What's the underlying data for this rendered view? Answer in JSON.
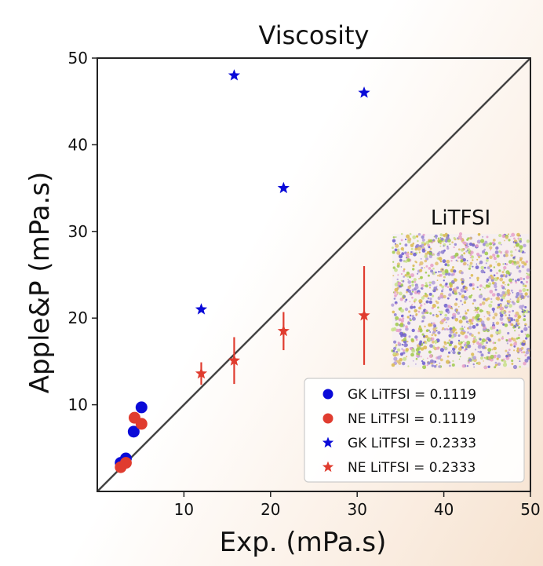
{
  "chart_data": {
    "type": "scatter",
    "title": "Viscosity",
    "xlabel": "Exp. (mPa.s)",
    "ylabel": "Apple&P (mPa.s)",
    "xlim": [
      0,
      50
    ],
    "ylim": [
      0,
      50
    ],
    "xticks": [
      10,
      20,
      30,
      40,
      50
    ],
    "yticks": [
      10,
      20,
      30,
      40,
      50
    ],
    "grid": false,
    "legend_position": "bottom-right",
    "diagonal_line": true,
    "inset_label": "LiTFSI",
    "series": [
      {
        "name": "GK LiTFSI = 0.1119",
        "marker": "circle",
        "color": "#0a0ad8",
        "points": [
          {
            "x": 2.7,
            "y": 3.3
          },
          {
            "x": 3.3,
            "y": 3.8
          },
          {
            "x": 4.2,
            "y": 6.9
          },
          {
            "x": 5.1,
            "y": 9.7
          }
        ]
      },
      {
        "name": "NE LiTFSI = 0.1119",
        "marker": "circle",
        "color": "#e03c2f",
        "points": [
          {
            "x": 2.7,
            "y": 2.8
          },
          {
            "x": 3.3,
            "y": 3.3
          },
          {
            "x": 4.3,
            "y": 8.5
          },
          {
            "x": 5.1,
            "y": 7.8
          }
        ]
      },
      {
        "name": "GK LiTFSI = 0.2333",
        "marker": "star",
        "color": "#0a0ad8",
        "points": [
          {
            "x": 12.0,
            "y": 21.0
          },
          {
            "x": 15.8,
            "y": 48.0
          },
          {
            "x": 21.5,
            "y": 35.0
          },
          {
            "x": 30.8,
            "y": 46.0
          }
        ]
      },
      {
        "name": "NE LiTFSI = 0.2333",
        "marker": "star",
        "color": "#e03c2f",
        "points": [
          {
            "x": 12.0,
            "y": 13.6,
            "err": 1.3
          },
          {
            "x": 15.8,
            "y": 15.1,
            "err": 2.7
          },
          {
            "x": 21.5,
            "y": 18.5,
            "err": 2.2
          },
          {
            "x": 30.8,
            "y": 20.3,
            "err": 5.7
          }
        ]
      }
    ]
  }
}
